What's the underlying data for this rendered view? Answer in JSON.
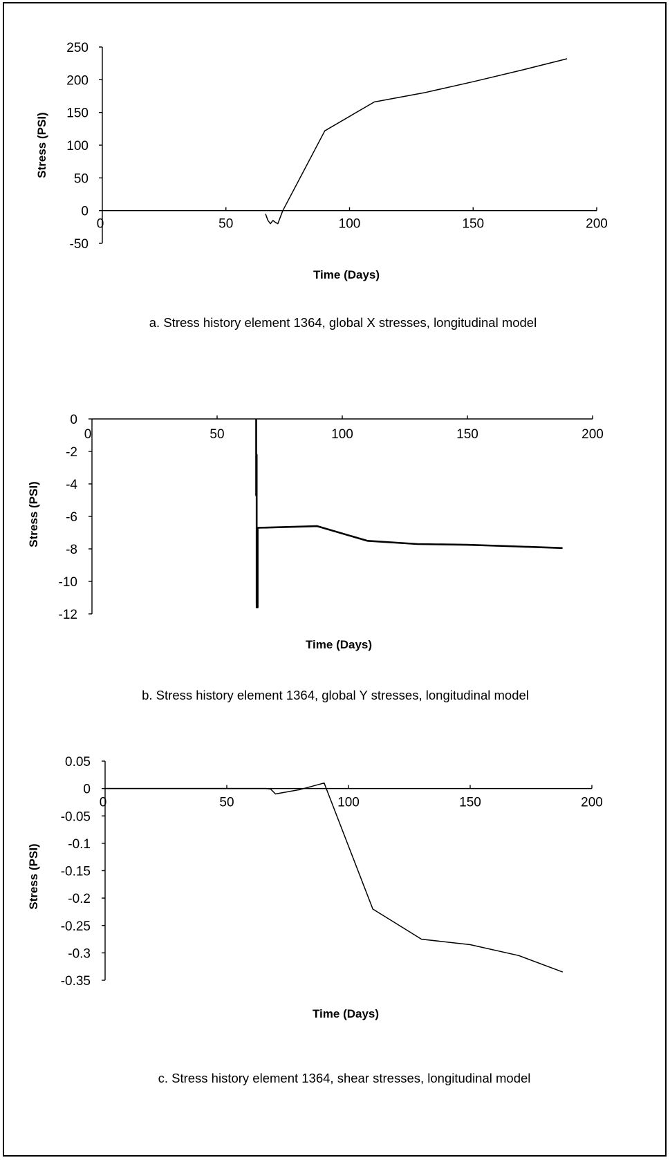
{
  "chart_data": [
    {
      "type": "line",
      "title": "",
      "caption": "a.  Stress history element 1364, global X stresses, longitudinal model",
      "xlabel": "Time (Days)",
      "ylabel": "Stress (PSI)",
      "xlim": [
        0,
        200
      ],
      "ylim": [
        -50,
        250
      ],
      "xticks": [
        0,
        50,
        100,
        150,
        200
      ],
      "yticks": [
        250,
        200,
        150,
        100,
        50,
        0,
        -50
      ],
      "xtick_labels": [
        "0",
        "50",
        "100",
        "150",
        "200"
      ],
      "ytick_labels": [
        "250",
        "200",
        "150",
        "100",
        "50",
        "0",
        "-50"
      ],
      "x_axis_at": 0,
      "grid": false,
      "series": [
        {
          "x": [
            66,
            67,
            68,
            69,
            70,
            71,
            73,
            90,
            110,
            130,
            150,
            170,
            188
          ],
          "y": [
            -5,
            -15,
            -20,
            -15,
            -18,
            -20,
            0,
            122,
            166,
            180,
            197,
            215,
            232
          ]
        }
      ]
    },
    {
      "type": "line",
      "title": "",
      "caption": "b.  Stress history element 1364, global Y stresses, longitudinal model",
      "xlabel": "Time (Days)",
      "ylabel": "Stress (PSI)",
      "xlim": [
        0,
        200
      ],
      "ylim": [
        -12,
        0
      ],
      "xticks": [
        0,
        50,
        100,
        150,
        200
      ],
      "yticks": [
        0,
        -2,
        -4,
        -6,
        -8,
        -10,
        -12
      ],
      "xtick_labels": [
        "0",
        "50",
        "100",
        "150",
        "200"
      ],
      "ytick_labels": [
        "0",
        "-2",
        "-4",
        "-6",
        "-8",
        "-10",
        "-12"
      ],
      "x_axis_at": 0,
      "grid": false,
      "series": [
        {
          "x": [
            65.6,
            65.6,
            65.8,
            65.8,
            66.2,
            66.2,
            90,
            110,
            130,
            150,
            170,
            188
          ],
          "y": [
            0,
            -4.7,
            -2.2,
            -11.6,
            -11.6,
            -6.7,
            -6.6,
            -7.5,
            -7.7,
            -7.75,
            -7.85,
            -7.95
          ]
        }
      ]
    },
    {
      "type": "line",
      "title": "",
      "caption": "c.  Stress history element 1364, shear stresses, longitudinal model",
      "xlabel": "Time (Days)",
      "ylabel": "Stress (PSI)",
      "xlim": [
        0,
        200
      ],
      "ylim": [
        -0.35,
        0.05
      ],
      "xticks": [
        0,
        50,
        100,
        150,
        200
      ],
      "yticks": [
        0.05,
        0,
        -0.05,
        -0.1,
        -0.15,
        -0.2,
        -0.25,
        -0.3,
        -0.35
      ],
      "xtick_labels": [
        "0",
        "50",
        "100",
        "150",
        "200"
      ],
      "ytick_labels": [
        "0.05",
        "0",
        "-0.05",
        "-0.1",
        "-0.15",
        "-0.2",
        "-0.25",
        "-0.3",
        "-0.35"
      ],
      "x_axis_at": 0,
      "grid": false,
      "series": [
        {
          "x": [
            0,
            66,
            68,
            70,
            80,
            90,
            110,
            130,
            150,
            170,
            188
          ],
          "y": [
            0,
            0,
            -0.001,
            -0.01,
            -0.002,
            0.01,
            -0.22,
            -0.275,
            -0.285,
            -0.305,
            -0.335
          ]
        }
      ]
    }
  ]
}
